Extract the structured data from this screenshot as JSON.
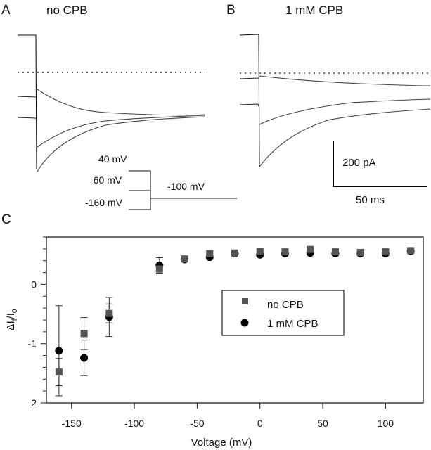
{
  "panels": {
    "A": {
      "letter": "A",
      "title": "no CPB"
    },
    "B": {
      "letter": "B",
      "title": "1 mM CPB"
    },
    "C": {
      "letter": "C"
    }
  },
  "protocol": {
    "labels": [
      "40 mV",
      "-60 mV",
      "-160 mV"
    ],
    "tail_label": "-100 mV"
  },
  "scale_bar": {
    "current": "200 pA",
    "time": "50 ms"
  },
  "traces": {
    "A": {
      "description": "Current traces at -100 mV following prepulses to 40, -60 and -160 mV, converging to steady state",
      "prepulse_levels_relative": [
        1.0,
        0.0,
        -0.35
      ],
      "tail_peaks_relative": [
        -0.1,
        -1.3,
        -1.85
      ],
      "steady_state_relative": -0.45
    },
    "B": {
      "description": "Current traces with 1 mM CPB; tails relax toward distinct levels",
      "prepulse_levels_relative": [
        1.0,
        -0.1,
        -0.45
      ],
      "tail_peaks_relative": [
        -0.05,
        -1.05,
        -2.0
      ],
      "steady_state_relative": [
        -0.25,
        -0.55,
        -0.75
      ]
    }
  },
  "chart_data": {
    "type": "scatter",
    "title": "",
    "xlabel": "Voltage (mV)",
    "ylabel": "ΔIf/I0",
    "xlim": [
      -170,
      130
    ],
    "ylim": [
      -2,
      0.8
    ],
    "xticks": [
      -150,
      -100,
      -50,
      0,
      50,
      100
    ],
    "yticks": [
      -2,
      -1,
      0
    ],
    "y_minor_step": 0.2,
    "grid": false,
    "legend_position": "center-right",
    "x": [
      -160,
      -140,
      -120,
      -80,
      -60,
      -40,
      -20,
      0,
      20,
      40,
      60,
      80,
      100,
      120
    ],
    "series": [
      {
        "name": "no CPB",
        "marker": "square",
        "color": "#555555",
        "values": [
          -1.48,
          -0.83,
          -0.49,
          0.26,
          0.43,
          0.52,
          0.53,
          0.56,
          0.55,
          0.59,
          0.55,
          0.54,
          0.55,
          0.57
        ],
        "errors": [
          0.23,
          0.27,
          0.16,
          0.08,
          0.03,
          0.04,
          0.03,
          0.03,
          0.03,
          0.04,
          0.03,
          0.03,
          0.03,
          0.03
        ]
      },
      {
        "name": "1 mM CPB",
        "marker": "circle",
        "color": "#000000",
        "values": [
          -1.12,
          -1.24,
          -0.55,
          0.32,
          0.42,
          0.46,
          0.52,
          0.5,
          0.52,
          0.53,
          0.52,
          0.52,
          0.52,
          0.56
        ],
        "errors": [
          0.76,
          0.3,
          0.33,
          0.13,
          0.03,
          0.04,
          0.03,
          0.03,
          0.03,
          0.03,
          0.03,
          0.03,
          0.03,
          0.03
        ]
      }
    ]
  }
}
